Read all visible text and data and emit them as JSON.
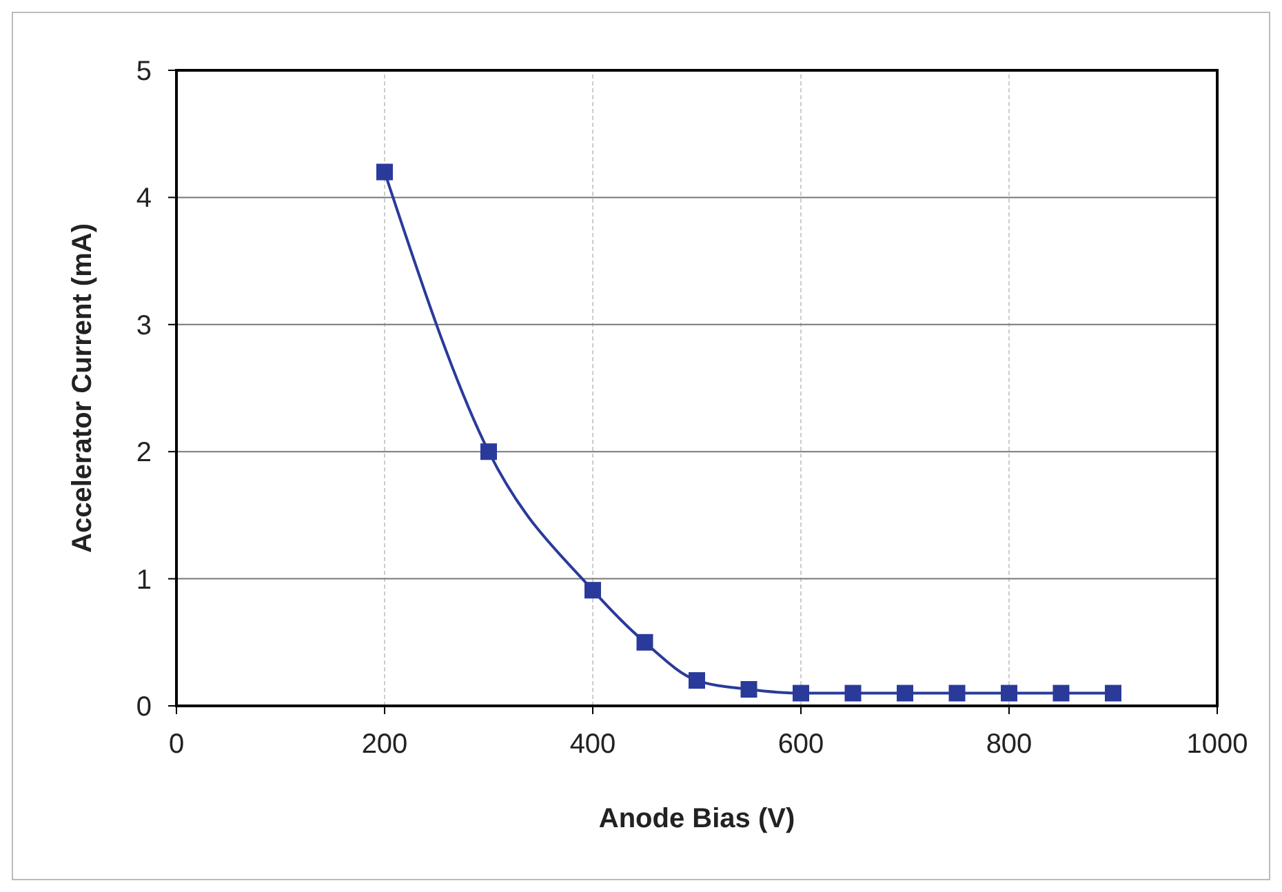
{
  "chart_data": {
    "type": "line",
    "xlabel": "Anode Bias (V)",
    "ylabel": "Accelerator Current (mA)",
    "x": [
      200,
      300,
      400,
      450,
      500,
      550,
      600,
      650,
      700,
      750,
      800,
      850,
      900
    ],
    "series": [
      {
        "color": "#2a3a9a",
        "values": [
          4.2,
          2.0,
          0.91,
          0.5,
          0.2,
          0.13,
          0.1,
          0.1,
          0.1,
          0.1,
          0.1,
          0.1,
          0.1
        ]
      }
    ],
    "xlim": [
      0,
      1000
    ],
    "xticks": [
      0,
      200,
      400,
      600,
      800,
      1000
    ],
    "ylim": [
      0,
      5
    ],
    "yticks": [
      0,
      1,
      2,
      3,
      4,
      5
    ],
    "grid": true,
    "marker": "square",
    "line_style": "solid"
  }
}
